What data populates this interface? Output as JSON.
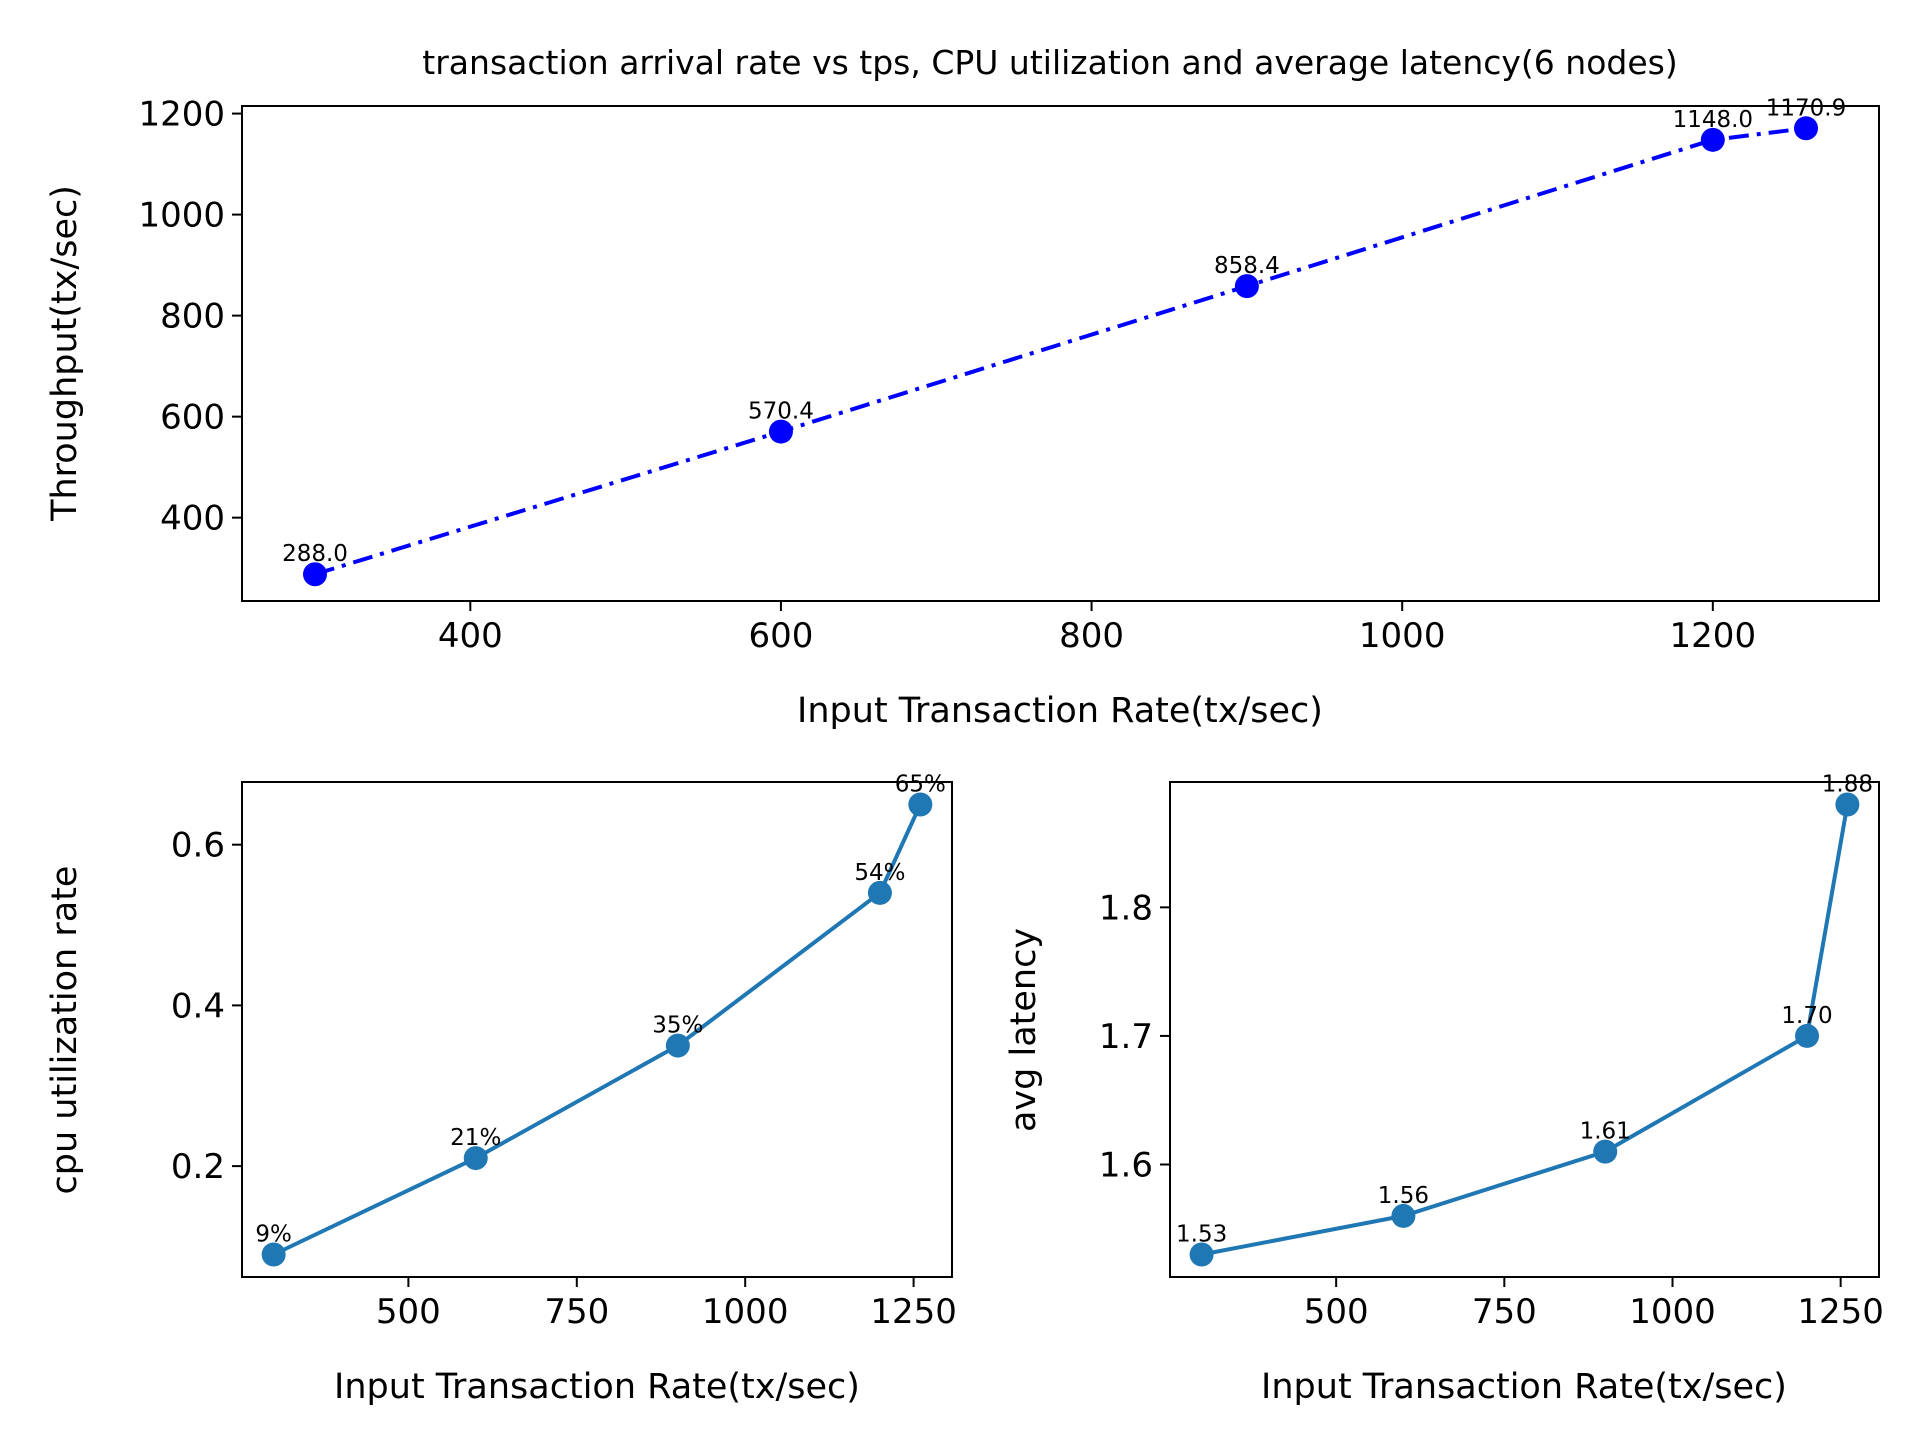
{
  "chart_data": [
    {
      "id": "top",
      "type": "line",
      "title": "transaction arrival rate vs tps, CPU utilization and average latency(6 nodes)",
      "xlabel": "Input Transaction Rate(tx/sec)",
      "ylabel": "Throughput(tx/sec)",
      "xlim": [
        253,
        1307
      ],
      "ylim": [
        235,
        1215
      ],
      "xticks": [
        400,
        600,
        800,
        1000,
        1200
      ],
      "xticklabels": [
        "400",
        "600",
        "800",
        "1000",
        "1200"
      ],
      "yticks": [
        400,
        600,
        800,
        1000,
        1200
      ],
      "yticklabels": [
        "400",
        "600",
        "800",
        "1000",
        "1200"
      ],
      "line_style": "dashdot",
      "color": "#0000ff",
      "x": [
        300,
        600,
        900,
        1200,
        1260
      ],
      "y": [
        288.0,
        570.4,
        858.4,
        1148.0,
        1170.9
      ],
      "labels": [
        "288.0",
        "570.4",
        "858.4",
        "1148.0",
        "1170.9"
      ],
      "grid": false
    },
    {
      "id": "cpu",
      "type": "line",
      "title": "",
      "xlabel": "Input Transaction Rate(tx/sec)",
      "ylabel": "cpu utilization rate",
      "xlim": [
        253,
        1307
      ],
      "ylim": [
        0.062,
        0.678
      ],
      "xticks": [
        500,
        750,
        1000,
        1250
      ],
      "xticklabels": [
        "500",
        "750",
        "1000",
        "1250"
      ],
      "yticks": [
        0.2,
        0.4,
        0.6
      ],
      "yticklabels": [
        "0.2",
        "0.4",
        "0.6"
      ],
      "line_style": "solid",
      "color": "#1f77b4",
      "x": [
        300,
        600,
        900,
        1200,
        1260
      ],
      "y": [
        0.09,
        0.21,
        0.35,
        0.54,
        0.65
      ],
      "labels": [
        "9%",
        "21%",
        "35%",
        "54%",
        "65%"
      ],
      "grid": false
    },
    {
      "id": "latency",
      "type": "line",
      "title": "",
      "xlabel": "Input Transaction Rate(tx/sec)",
      "ylabel": "avg latency",
      "xlim": [
        253,
        1307
      ],
      "ylim": [
        1.5125,
        1.8975
      ],
      "xticks": [
        500,
        750,
        1000,
        1250
      ],
      "xticklabels": [
        "500",
        "750",
        "1000",
        "1250"
      ],
      "yticks": [
        1.6,
        1.7,
        1.8
      ],
      "yticklabels": [
        "1.6",
        "1.7",
        "1.8"
      ],
      "line_style": "solid",
      "color": "#1f77b4",
      "x": [
        300,
        600,
        900,
        1200,
        1260
      ],
      "y": [
        1.53,
        1.56,
        1.61,
        1.7,
        1.88
      ],
      "labels": [
        "1.53",
        "1.56",
        "1.61",
        "1.70",
        "1.88"
      ],
      "grid": false
    }
  ]
}
